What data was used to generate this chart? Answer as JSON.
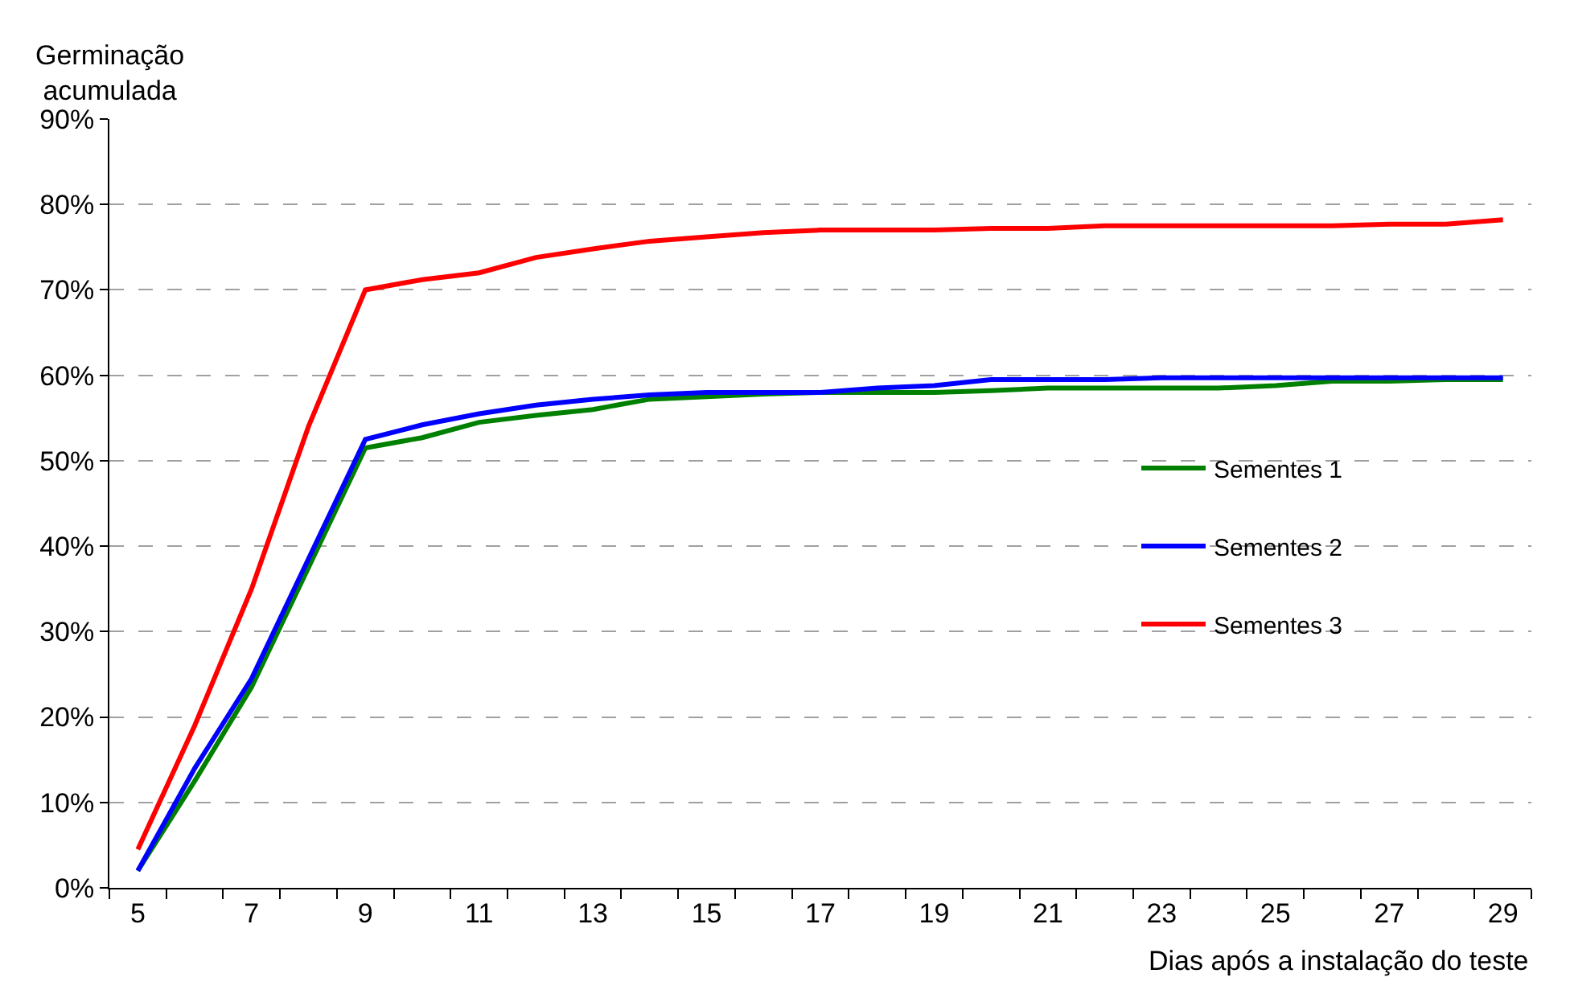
{
  "chart_data": {
    "type": "line",
    "ylabel": "Germinação\nacumulada",
    "xlabel": "Dias após a instalação do teste",
    "categories": [
      "5",
      null,
      "7",
      null,
      "9",
      null,
      "11",
      null,
      "13",
      null,
      "15",
      null,
      "17",
      null,
      "19",
      null,
      "21",
      null,
      "23",
      null,
      "25",
      null,
      "27",
      null,
      "29"
    ],
    "series": [
      {
        "name": "Sementes 1",
        "color": "#008000",
        "values": [
          2,
          12.5,
          23.5,
          37.5,
          51.5,
          52.7,
          54.5,
          55.3,
          56,
          57.2,
          57.5,
          57.8,
          58,
          58,
          58,
          58.2,
          58.5,
          58.5,
          58.5,
          58.5,
          58.8,
          59.3,
          59.3,
          59.5,
          59.5
        ]
      },
      {
        "name": "Sementes 2",
        "color": "#0000ff",
        "values": [
          2,
          14,
          24.5,
          38.5,
          52.5,
          54.2,
          55.5,
          56.5,
          57.2,
          57.7,
          58,
          58,
          58,
          58.5,
          58.8,
          59.5,
          59.5,
          59.5,
          59.7,
          59.7,
          59.7,
          59.7,
          59.7,
          59.7,
          59.7
        ]
      },
      {
        "name": "Sementes 3",
        "color": "#ff0000",
        "values": [
          4.5,
          19,
          35,
          54,
          70,
          71.2,
          72,
          73.8,
          74.8,
          75.7,
          76.2,
          76.7,
          77,
          77,
          77,
          77.2,
          77.2,
          77.5,
          77.5,
          77.5,
          77.5,
          77.5,
          77.7,
          77.7,
          78.2
        ]
      }
    ],
    "ylim": [
      0,
      90
    ],
    "yticks": [
      {
        "value": 0,
        "label": "0%"
      },
      {
        "value": 10,
        "label": "10%"
      },
      {
        "value": 20,
        "label": "20%"
      },
      {
        "value": 30,
        "label": "30%"
      },
      {
        "value": 40,
        "label": "40%"
      },
      {
        "value": 50,
        "label": "50%"
      },
      {
        "value": 60,
        "label": "60%"
      },
      {
        "value": 70,
        "label": "70%"
      },
      {
        "value": 80,
        "label": "80%"
      },
      {
        "value": 90,
        "label": "90%"
      }
    ],
    "grid": "y",
    "legend": "right",
    "marker": "none",
    "line_style": "solid"
  }
}
